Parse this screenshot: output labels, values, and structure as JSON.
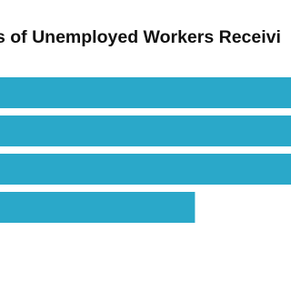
{
  "chart_data": {
    "type": "hbar",
    "title": "s of Unemployed Workers Receivi",
    "categories": [
      null,
      null,
      null,
      null
    ],
    "values": [
      100,
      100,
      100,
      67
    ],
    "color": "#2aa8c9",
    "xlim": [
      0,
      100
    ]
  }
}
